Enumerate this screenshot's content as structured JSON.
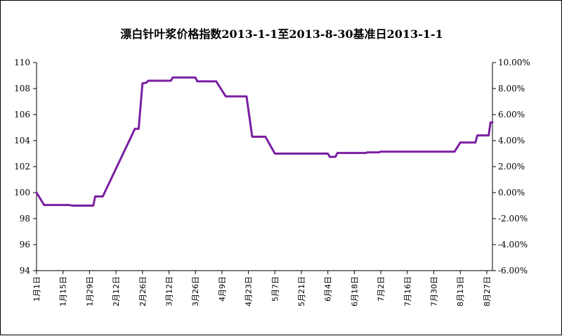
{
  "chart_data": {
    "type": "line",
    "title": "漂白针叶浆价格指数2013-1-1至2013-8-30基准日2013-1-1",
    "xlabel": "",
    "ylabel": "",
    "ylim": [
      94,
      110
    ],
    "y_ticks": [
      "110",
      "108",
      "106",
      "104",
      "102",
      "100",
      "98",
      "96",
      "94"
    ],
    "y2lim": [
      -6,
      10
    ],
    "y2_ticks": [
      "10.00%",
      "8.00%",
      "6.00%",
      "4.00%",
      "2.00%",
      "0.00%",
      "-2.00%",
      "-4.00%",
      "-6.00%"
    ],
    "x_ticks": [
      "1月1日",
      "1月15日",
      "1月29日",
      "2月12日",
      "2月26日",
      "3月12日",
      "3月26日",
      "4月9日",
      "4月23日",
      "5月7日",
      "5月21日",
      "6月4日",
      "6月18日",
      "7月2日",
      "7月16日",
      "7月30日",
      "8月13日",
      "8月27日"
    ],
    "xlim": [
      "2013-01-01",
      "2013-08-30"
    ],
    "grid": false,
    "legend": "none",
    "line_color": "#7a1fa2",
    "series": [
      {
        "points": [
          [
            "2013-01-01",
            100.0
          ],
          [
            "2013-01-05",
            99.05
          ],
          [
            "2013-01-18",
            99.05
          ],
          [
            "2013-01-20",
            99.0
          ],
          [
            "2013-01-31",
            99.0
          ],
          [
            "2013-02-01",
            99.7
          ],
          [
            "2013-02-05",
            99.7
          ],
          [
            "2013-02-22",
            104.9
          ],
          [
            "2013-02-24",
            104.9
          ],
          [
            "2013-02-26",
            108.4
          ],
          [
            "2013-02-28",
            108.45
          ],
          [
            "2013-03-01",
            108.6
          ],
          [
            "2013-03-13",
            108.6
          ],
          [
            "2013-03-14",
            108.85
          ],
          [
            "2013-03-26",
            108.85
          ],
          [
            "2013-03-27",
            108.55
          ],
          [
            "2013-04-06",
            108.55
          ],
          [
            "2013-04-11",
            107.4
          ],
          [
            "2013-04-22",
            107.4
          ],
          [
            "2013-04-25",
            104.3
          ],
          [
            "2013-05-02",
            104.3
          ],
          [
            "2013-05-07",
            103.0
          ],
          [
            "2013-06-04",
            103.0
          ],
          [
            "2013-06-05",
            102.75
          ],
          [
            "2013-06-08",
            102.75
          ],
          [
            "2013-06-09",
            103.05
          ],
          [
            "2013-06-24",
            103.05
          ],
          [
            "2013-06-25",
            103.1
          ],
          [
            "2013-07-01",
            103.1
          ],
          [
            "2013-07-02",
            103.15
          ],
          [
            "2013-08-10",
            103.15
          ],
          [
            "2013-08-13",
            103.85
          ],
          [
            "2013-08-21",
            103.85
          ],
          [
            "2013-08-22",
            104.4
          ],
          [
            "2013-08-28",
            104.4
          ],
          [
            "2013-08-29",
            105.4
          ],
          [
            "2013-08-30",
            105.4
          ]
        ]
      }
    ]
  }
}
